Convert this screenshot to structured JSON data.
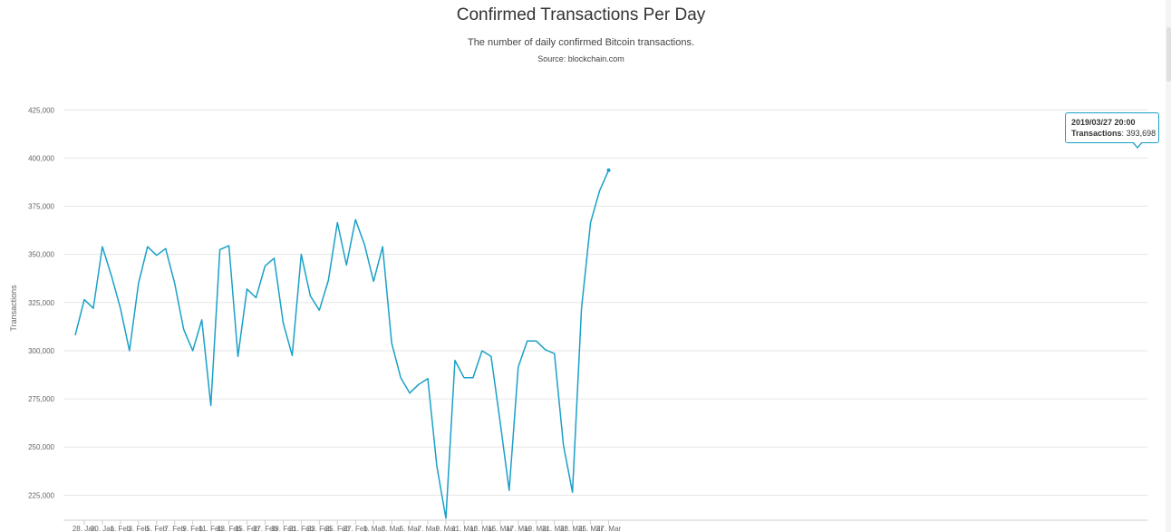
{
  "header": {
    "title": "Confirmed Transactions Per Day",
    "subtitle": "The number of daily confirmed Bitcoin transactions.",
    "source": "Source: blockchain.com"
  },
  "tooltip": {
    "date": "2019/03/27 20:00",
    "series_label": "Transactions",
    "separator": ":",
    "value": "393,698"
  },
  "colors": {
    "line": "#1aa0c8",
    "grid": "#e6e6e6",
    "axis_text": "#666666"
  },
  "chart_data": {
    "type": "line",
    "title": "Confirmed Transactions Per Day",
    "subtitle": "The number of daily confirmed Bitcoin transactions.",
    "xlabel": "",
    "ylabel": "Transactions",
    "ylim": [
      212000,
      435000
    ],
    "grid": true,
    "legend": "none",
    "y_ticks": [
      225000,
      250000,
      275000,
      300000,
      325000,
      350000,
      375000,
      400000,
      425000
    ],
    "y_tick_labels": [
      "225,000",
      "250,000",
      "275,000",
      "300,000",
      "325,000",
      "350,000",
      "375,000",
      "400,000",
      "425,000"
    ],
    "x_start": "2019-01-27",
    "x_tick_labels": [
      "28. Jan",
      "30. Jan",
      "1. Feb",
      "3. Feb",
      "5. Feb",
      "7. Feb",
      "9. Feb",
      "11. Feb",
      "13. Feb",
      "15. Feb",
      "17. Feb",
      "19. Feb",
      "21. Feb",
      "23. Feb",
      "25. Feb",
      "27. Feb",
      "1. Mar",
      "3. Mar",
      "5. Mar",
      "7. Mar",
      "9. Mar",
      "11. Mar",
      "13. Mar",
      "15. Mar",
      "17. Mar",
      "19. Mar",
      "21. Mar",
      "23. Mar",
      "25. Mar",
      "27. Mar"
    ],
    "x_tick_days": [
      1,
      3,
      5,
      7,
      9,
      11,
      13,
      15,
      17,
      19,
      21,
      23,
      25,
      27,
      29,
      31,
      33,
      35,
      37,
      39,
      41,
      43,
      45,
      47,
      49,
      51,
      53,
      55,
      57,
      59
    ],
    "series": [
      {
        "name": "Transactions",
        "values": [
          308000,
          326500,
          322000,
          354000,
          339000,
          322000,
          300000,
          335000,
          354000,
          349500,
          353000,
          335000,
          311000,
          300000,
          316000,
          271500,
          352500,
          354500,
          297000,
          332000,
          327500,
          344000,
          348000,
          314500,
          297500,
          350000,
          328500,
          321000,
          336500,
          366500,
          344500,
          368000,
          355000,
          336000,
          354000,
          304000,
          286000,
          278000,
          282500,
          285500,
          240000,
          213000,
          295000,
          286000,
          286000,
          300000,
          297000,
          263000,
          227500,
          291500,
          305000,
          305000,
          300500,
          298500,
          251000,
          226500,
          322000,
          366500,
          383000,
          393698
        ]
      }
    ]
  }
}
